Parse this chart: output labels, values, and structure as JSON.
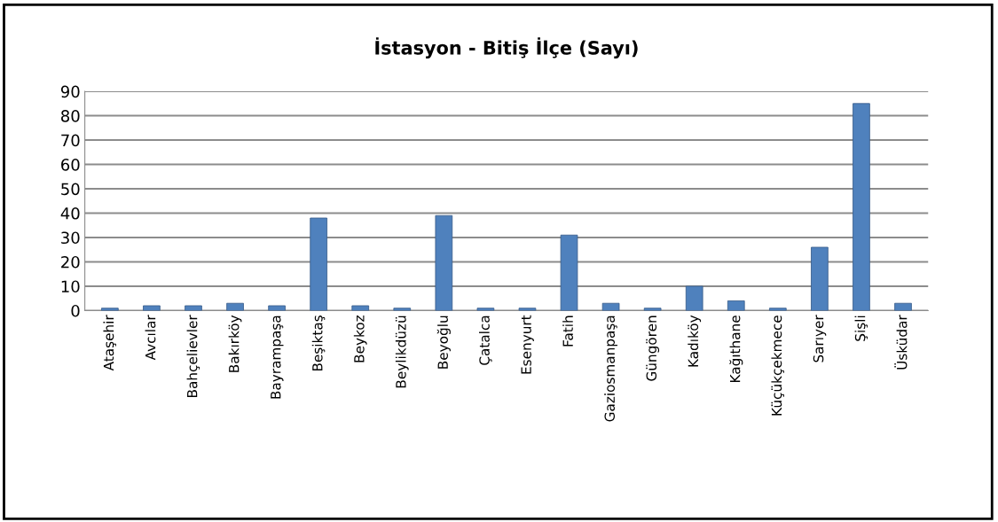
{
  "chart_data": {
    "type": "bar",
    "title": "İstasyon - Bitiş İlçe (Sayı)",
    "categories": [
      "Ataşehir",
      "Avcılar",
      "Bahçelievler",
      "Bakırköy",
      "Bayrampaşa",
      "Beşiktaş",
      "Beykoz",
      "Beylikdüzü",
      "Beyoğlu",
      "Çatalca",
      "Esenyurt",
      "Fatih",
      "Gaziosmanpaşa",
      "Güngören",
      "Kadıköy",
      "Kağıthane",
      "Küçükçekmece",
      "Sarıyer",
      "Şişli",
      "Üsküdar"
    ],
    "values": [
      1,
      2,
      2,
      3,
      2,
      38,
      2,
      1,
      39,
      1,
      1,
      31,
      3,
      1,
      10,
      4,
      1,
      26,
      85,
      3
    ],
    "color": "#4f81bd",
    "ylim": [
      0,
      90
    ],
    "yticks": [
      0,
      10,
      20,
      30,
      40,
      50,
      60,
      70,
      80,
      90
    ],
    "grid": "y",
    "legend": false
  }
}
